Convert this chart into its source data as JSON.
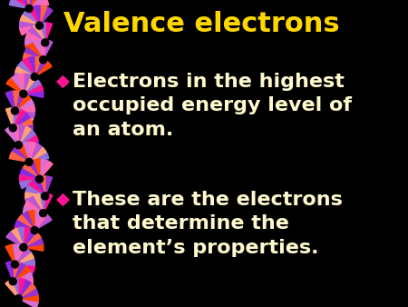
{
  "background_color": "#000000",
  "title": "Valence electrons",
  "title_color": "#FFD700",
  "title_fontsize": 22,
  "bullet_color": "#FFFACD",
  "bullet_fontsize": 16,
  "bullet_marker": "◆",
  "bullet_marker_color": "#FF1493",
  "bullets": [
    "Electrons in the highest\noccupied energy level of\nan atom.",
    "These are the electrons\nthat determine the\nelement’s properties."
  ],
  "dna_colors": [
    "#FF69B4",
    "#DA70D6",
    "#FF4500",
    "#9932CC",
    "#FF6347",
    "#8A2BE2",
    "#FF1493",
    "#9370DB",
    "#FFA07A",
    "#BA55D3"
  ],
  "fig_width": 4.5,
  "fig_height": 3.38,
  "dpi": 100
}
